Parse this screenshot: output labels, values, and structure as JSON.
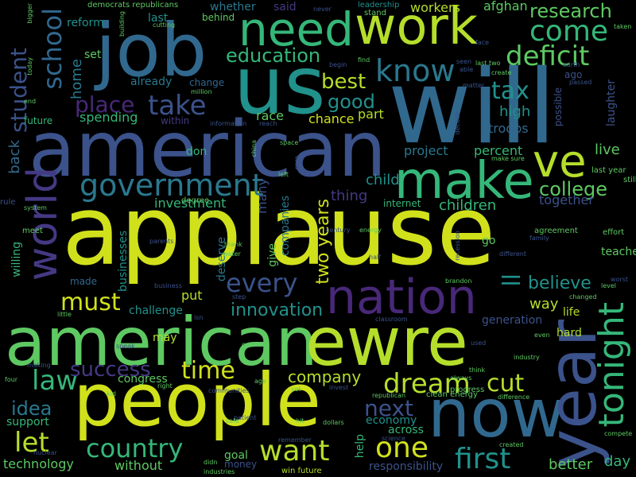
{
  "palette": {
    "background": "#000000",
    "yellow_green": "#d0e11c",
    "light_green": "#b5de2b",
    "green": "#5ec962",
    "teal_green": "#35b779",
    "teal": "#21918c",
    "blue_teal": "#2a788e",
    "blue": "#31688e",
    "indigo": "#3b528b",
    "violet": "#443983",
    "purple": "#482878"
  },
  "words": {
    "applause": "applause",
    "will": "will",
    "american": "american",
    "job": "job",
    "us": "us",
    "americanew": "american",
    "ewre": "ewre",
    "people": "people",
    "now": "now",
    "year": "year",
    "work": "work",
    "need": "need",
    "make": "make",
    "nation": "nation",
    "ve": "ve",
    "world": "world",
    "tonight": "tonight",
    "government": "government",
    "take": "take",
    "place": "place",
    "student": "student",
    "school": "school",
    "know": "know",
    "come": "come",
    "deficit": "deficit",
    "research": "research",
    "education": "education",
    "best": "best",
    "good": "good",
    "tax": "tax",
    "college": "college",
    "every": "every",
    "ll": "ll",
    "must": "must",
    "time": "time",
    "dream": "dream",
    "cut": "cut",
    "law": "law",
    "success": "success",
    "country": "country",
    "want": "want",
    "one": "one",
    "first": "first",
    "let": "let",
    "next": "next",
    "idea": "idea",
    "two_years": "two years",
    "believe": "believe",
    "innovation": "innovation",
    "company": "company",
    "way": "way",
    "children": "children",
    "child": "child",
    "thing": "thing",
    "together": "together",
    "investment": "investment",
    "project": "project",
    "percent": "percent",
    "live": "live",
    "high": "high",
    "troops": "troops",
    "chance": "chance",
    "race": "race",
    "part": "part",
    "spending": "spending",
    "already": "already",
    "change": "change",
    "home": "home",
    "back": "back",
    "set": "set",
    "last": "last",
    "reform": "reform",
    "whether": "whether",
    "said": "said",
    "workers": "workers",
    "afghan": "afghan",
    "behind": "behind",
    "future": "future",
    "within": "within",
    "don": "don",
    "many": "many",
    "give": "give",
    "companies": "companies",
    "businesses": "businesses",
    "deserve": "deserve",
    "put": "put",
    "challenge": "challenge",
    "made": "made",
    "willing": "willing",
    "may": "may",
    "congress": "congress",
    "support": "support",
    "technology": "technology",
    "without": "without",
    "goal": "goal",
    "money": "money",
    "economy": "economy",
    "across": "across",
    "help": "help",
    "responsibility": "responsibility",
    "better": "better",
    "day": "day",
    "hard": "hard",
    "life": "life",
    "generation": "generation",
    "teacher": "teacher",
    "go": "go",
    "laughter": "laughter",
    "internet": "internet",
    "possible": "possible",
    "ago": "ago",
    "last_year": "last year",
    "still": "still",
    "effort": "effort",
    "agreement": "agreement",
    "family": "family",
    "democrats": "democrats",
    "republicans": "republicans",
    "leadership": "leadership",
    "stand": "stand",
    "cutting": "cutting",
    "building": "building",
    "bigger": "bigger",
    "today": "today",
    "end": "end",
    "rule": "rule",
    "system": "system",
    "meet": "meet",
    "degree": "degree",
    "parents": "parents",
    "thank": "thank",
    "water": "water",
    "century": "century",
    "energy": "energy",
    "half": "half",
    "recession": "recession",
    "different": "different",
    "brandon": "brandon",
    "clean_energy": "clean energy",
    "progress": "progress",
    "invest": "invest",
    "republican": "republican",
    "difference": "difference",
    "industry": "industry",
    "even": "even",
    "used": "used",
    "think": "think",
    "always": "always",
    "created": "created",
    "compete": "compete",
    "make_sure": "make sure",
    "left": "left",
    "care": "care",
    "space": "space",
    "china": "china",
    "information": "information",
    "reach": "reach",
    "million": "million",
    "matter": "matter",
    "able": "able",
    "seen": "seen",
    "face": "face",
    "earth": "earth",
    "passed": "passed",
    "last_two": "last two",
    "create": "create",
    "begin": "begin",
    "find": "find",
    "never": "never",
    "taken": "taken",
    "worst": "worst",
    "level": "level",
    "changed": "changed",
    "decade": "decade",
    "business": "business",
    "step": "step",
    "classroom": "classroom",
    "little": "little",
    "isn": "isn",
    "speak": "speak",
    "cost": "cost",
    "making": "making",
    "four": "four",
    "kid": "kid",
    "right": "right",
    "communities": "communities",
    "age": "age",
    "yet": "yet",
    "nuclear": "nuclear",
    "didn": "didn",
    "industries": "industries",
    "win_future": "win future",
    "patient": "patient",
    "dollars": "dollars",
    "hit": "hit",
    "remember": "remember",
    "science": "science",
    "safe": "safe"
  }
}
